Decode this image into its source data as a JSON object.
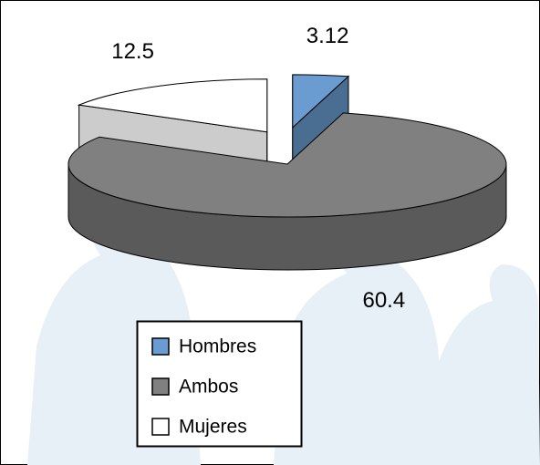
{
  "chart_data": {
    "type": "pie",
    "categories": [
      "Hombres",
      "Ambos",
      "Mujeres"
    ],
    "values": [
      3.12,
      60.4,
      12.5
    ],
    "colors": [
      "#6a9bd1",
      "#808080",
      "#ffffff"
    ],
    "legend": "bottom-left"
  }
}
